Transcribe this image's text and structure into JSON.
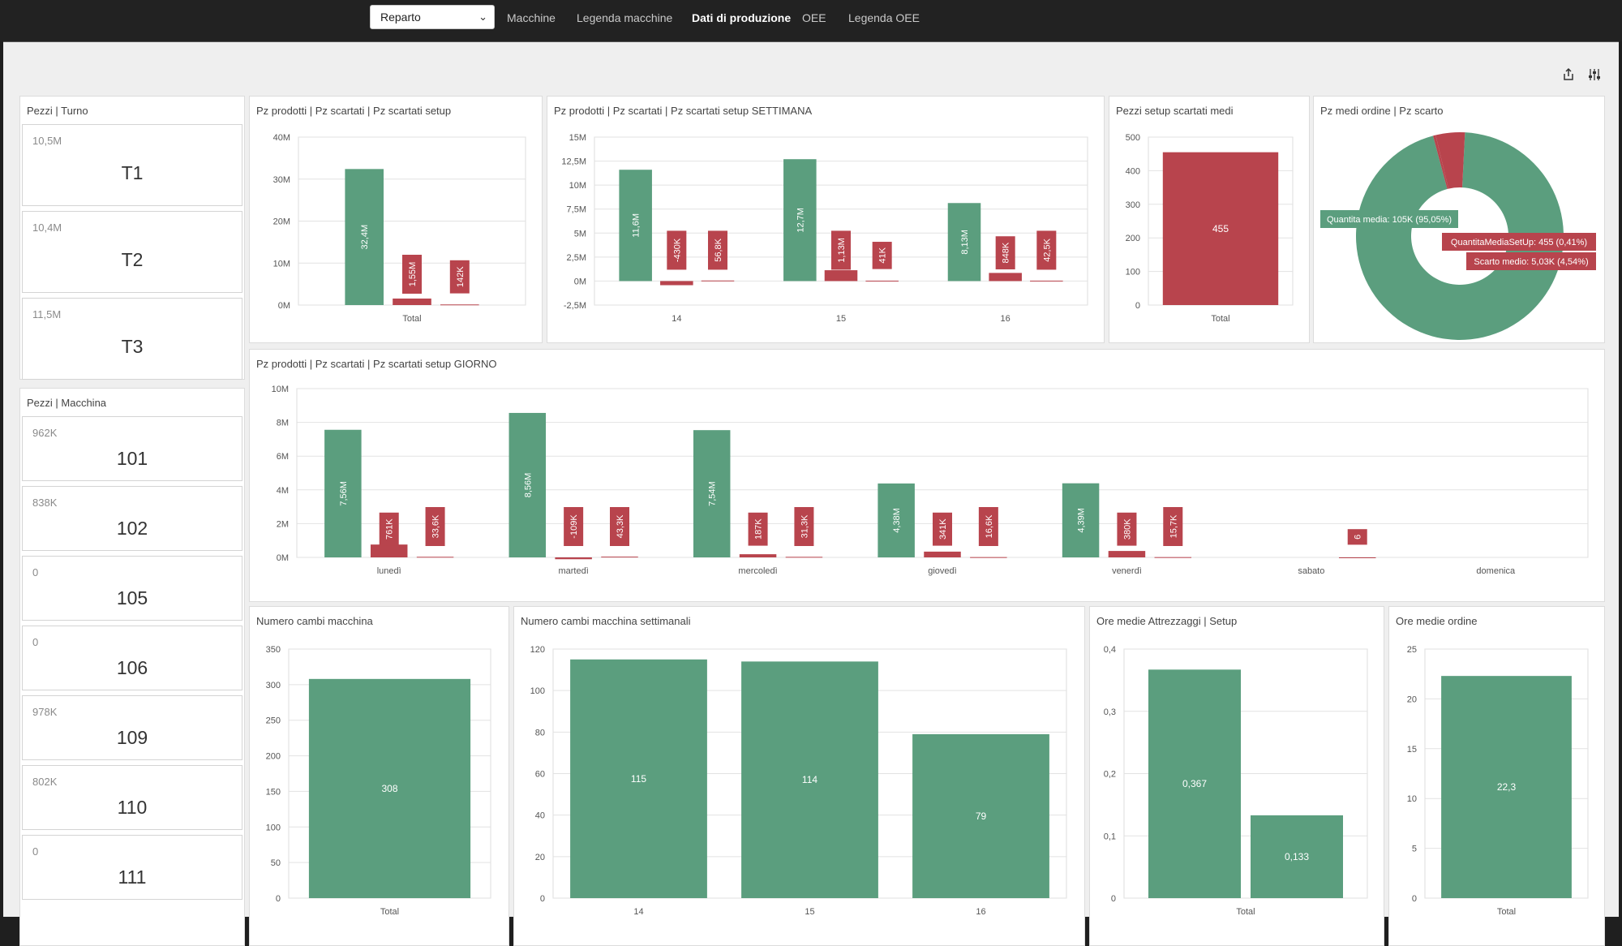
{
  "colors": {
    "green": "#5b9e7e",
    "red": "#b8444d",
    "grid": "#e2e2e2"
  },
  "nav": {
    "reparto_label": "Reparto",
    "tabs": [
      "Macchine",
      "Legenda macchine",
      "Dati di produzione",
      "OEE",
      "Legenda OEE"
    ],
    "active_tab": "Dati di produzione"
  },
  "toolbar": {
    "icons": [
      "share-icon",
      "filter-settings-icon"
    ]
  },
  "turno": {
    "title": "Pezzi | Turno",
    "cards": [
      {
        "value": "10,5M",
        "label": "T1"
      },
      {
        "value": "10,4M",
        "label": "T2"
      },
      {
        "value": "11,5M",
        "label": "T3"
      }
    ]
  },
  "macchina": {
    "title": "Pezzi | Macchina",
    "cards": [
      {
        "value": "962K",
        "label": "101"
      },
      {
        "value": "838K",
        "label": "102"
      },
      {
        "value": "0",
        "label": "105"
      },
      {
        "value": "0",
        "label": "106"
      },
      {
        "value": "978K",
        "label": "109"
      },
      {
        "value": "802K",
        "label": "110"
      },
      {
        "value": "0",
        "label": "111"
      }
    ]
  },
  "chart_data": [
    {
      "id": "total",
      "type": "bar",
      "title": "Pz prodotti | Pz scartati | Pz scartati setup",
      "categories": [
        "Total"
      ],
      "ylim": [
        0,
        40000000
      ],
      "yticks": [
        0,
        10000000,
        20000000,
        30000000,
        40000000
      ],
      "yticklabels": [
        "0M",
        "10M",
        "20M",
        "30M",
        "40M"
      ],
      "series": [
        {
          "color": "green",
          "values": [
            32400000
          ],
          "labels": [
            "32,4M"
          ]
        },
        {
          "color": "red",
          "values": [
            1550000
          ],
          "labels": [
            "1,55M"
          ]
        },
        {
          "color": "red",
          "values": [
            142000
          ],
          "labels": [
            "142K"
          ]
        }
      ]
    },
    {
      "id": "week",
      "type": "bar",
      "title": "Pz prodotti | Pz scartati | Pz scartati setup SETTIMANA",
      "categories": [
        "14",
        "15",
        "16"
      ],
      "ylim": [
        -2500000,
        15000000
      ],
      "yticks": [
        -2500000,
        0,
        2500000,
        5000000,
        7500000,
        10000000,
        12500000,
        15000000
      ],
      "yticklabels": [
        "-2,5M",
        "0M",
        "2,5M",
        "5M",
        "7,5M",
        "10M",
        "12,5M",
        "15M"
      ],
      "series": [
        {
          "color": "green",
          "values": [
            11600000,
            12700000,
            8130000
          ],
          "labels": [
            "11,6M",
            "12,7M",
            "8,13M"
          ]
        },
        {
          "color": "red",
          "values": [
            -430000,
            1130000,
            848000
          ],
          "labels": [
            "-430K",
            "1,13M",
            "848K"
          ]
        },
        {
          "color": "red",
          "values": [
            56800,
            41000,
            42500
          ],
          "labels": [
            "56,8K",
            "41K",
            "42,5K"
          ]
        }
      ]
    },
    {
      "id": "setup",
      "type": "bar",
      "title": "Pezzi setup scartati medi",
      "categories": [
        "Total"
      ],
      "ylim": [
        0,
        500
      ],
      "yticks": [
        0,
        100,
        200,
        300,
        400,
        500
      ],
      "yticklabels": [
        "0",
        "100",
        "200",
        "300",
        "400",
        "500"
      ],
      "series": [
        {
          "color": "red",
          "values": [
            455
          ],
          "labels": [
            "455"
          ]
        }
      ]
    },
    {
      "id": "donut",
      "type": "pie",
      "title": "Pz medi ordine | Pz scarto",
      "slices": [
        {
          "label": "Quantita media: 105K (95,05%)",
          "value": 95.05,
          "color": "green"
        },
        {
          "label": "QuantitaMediaSetUp: 455 (0,41%)",
          "value": 0.41,
          "color": "red"
        },
        {
          "label": "Scarto medio: 5,03K (4,54%)",
          "value": 4.54,
          "color": "red"
        }
      ]
    },
    {
      "id": "day",
      "type": "bar",
      "title": "Pz prodotti | Pz scartati | Pz scartati setup GIORNO",
      "categories": [
        "lunedì",
        "martedì",
        "mercoledì",
        "giovedì",
        "venerdì",
        "sabato",
        "domenica"
      ],
      "ylim": [
        0,
        10000000
      ],
      "yticks": [
        0,
        2000000,
        4000000,
        6000000,
        8000000,
        10000000
      ],
      "yticklabels": [
        "0M",
        "2M",
        "4M",
        "6M",
        "8M",
        "10M"
      ],
      "series": [
        {
          "color": "green",
          "values": [
            7560000,
            8560000,
            7540000,
            4380000,
            4390000,
            null,
            null
          ],
          "labels": [
            "7,56M",
            "8,56M",
            "7,54M",
            "4,38M",
            "4,39M",
            "",
            ""
          ]
        },
        {
          "color": "red",
          "values": [
            761000,
            -109000,
            187000,
            341000,
            380000,
            null,
            null
          ],
          "labels": [
            "761K",
            "-109K",
            "187K",
            "341K",
            "380K",
            "",
            ""
          ]
        },
        {
          "color": "red",
          "values": [
            33600,
            43300,
            31300,
            16600,
            15700,
            6,
            null
          ],
          "labels": [
            "33,6K",
            "43,3K",
            "31,3K",
            "16,6K",
            "15,7K",
            "6",
            ""
          ]
        }
      ]
    },
    {
      "id": "cambi",
      "type": "bar",
      "title": "Numero cambi macchina",
      "categories": [
        "Total"
      ],
      "ylim": [
        0,
        350
      ],
      "yticks": [
        0,
        50,
        100,
        150,
        200,
        250,
        300,
        350
      ],
      "yticklabels": [
        "0",
        "50",
        "100",
        "150",
        "200",
        "250",
        "300",
        "350"
      ],
      "series": [
        {
          "color": "green",
          "values": [
            308
          ],
          "labels": [
            "308"
          ]
        }
      ]
    },
    {
      "id": "cambiweek",
      "type": "bar",
      "title": "Numero cambi macchina settimanali",
      "categories": [
        "14",
        "15",
        "16"
      ],
      "ylim": [
        0,
        120
      ],
      "yticks": [
        0,
        20,
        40,
        60,
        80,
        100,
        120
      ],
      "yticklabels": [
        "0",
        "20",
        "40",
        "60",
        "80",
        "100",
        "120"
      ],
      "series": [
        {
          "color": "green",
          "values": [
            115,
            114,
            79
          ],
          "labels": [
            "115",
            "114",
            "79"
          ]
        }
      ]
    },
    {
      "id": "ore",
      "type": "bar",
      "title": "Ore medie Attrezzaggi | Setup",
      "categories": [
        "Total"
      ],
      "ylim": [
        0,
        0.4
      ],
      "yticks": [
        0,
        0.1,
        0.2,
        0.3,
        0.4
      ],
      "yticklabels": [
        "0",
        "0,1",
        "0,2",
        "0,3",
        "0,4"
      ],
      "series": [
        {
          "color": "green",
          "values": [
            0.367
          ],
          "labels": [
            "0,367"
          ]
        },
        {
          "color": "green",
          "values": [
            0.133
          ],
          "labels": [
            "0,133"
          ]
        }
      ]
    },
    {
      "id": "oreord",
      "type": "bar",
      "title": "Ore medie ordine",
      "categories": [
        "Total"
      ],
      "ylim": [
        0,
        25
      ],
      "yticks": [
        0,
        5,
        10,
        15,
        20,
        25
      ],
      "yticklabels": [
        "0",
        "5",
        "10",
        "15",
        "20",
        "25"
      ],
      "series": [
        {
          "color": "green",
          "values": [
            22.3
          ],
          "labels": [
            "22,3"
          ]
        }
      ]
    }
  ]
}
